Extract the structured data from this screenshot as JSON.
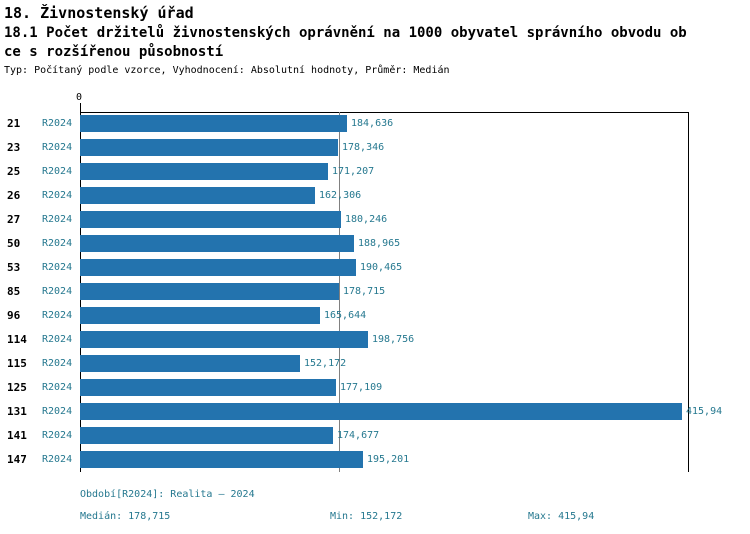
{
  "header": {
    "title": "18. Živnostenský úřad",
    "subtitle_line1": "18.1 Počet držitelů živnostenských oprávnění na 1000 obyvatel správního obvodu ob",
    "subtitle_line2": "ce s rozšířenou působností",
    "meta": "Typ: Počítaný podle vzorce, Vyhodnocení: Absolutní hodnoty, Průměr: Medián"
  },
  "colors": {
    "bar": "#2373ae",
    "accent_text": "#25788f",
    "median_line": "#808080",
    "axis": "#000000"
  },
  "chart_data": {
    "type": "bar",
    "orientation": "horizontal",
    "title": "18.1 Počet držitelů živnostenských oprávnění na 1000 obyvatel správního obvodu obce s rozšířenou působností",
    "series_label": "R2024",
    "axis_zero_label": "0",
    "categories": [
      "21",
      "23",
      "25",
      "26",
      "27",
      "50",
      "53",
      "85",
      "96",
      "114",
      "115",
      "125",
      "131",
      "141",
      "147"
    ],
    "values": [
      184.636,
      178.346,
      171.207,
      162.306,
      180.246,
      188.965,
      190.465,
      178.715,
      165.644,
      198.756,
      152.172,
      177.109,
      415.94,
      174.677,
      195.201
    ],
    "value_labels": [
      "184,636",
      "178,346",
      "171,207",
      "162,306",
      "180,246",
      "188,965",
      "190,465",
      "178,715",
      "165,644",
      "198,756",
      "152,172",
      "177,109",
      "415,94",
      "174,677",
      "195,201"
    ],
    "median_value": 178.715,
    "xlim": [
      0,
      420
    ],
    "grid": "median-line-only",
    "legend": "none"
  },
  "footer": {
    "period": "Období[R2024]: Realita – 2024",
    "median": "Medián: 178,715",
    "min": "Min: 152,172",
    "max": "Max: 415,94"
  }
}
